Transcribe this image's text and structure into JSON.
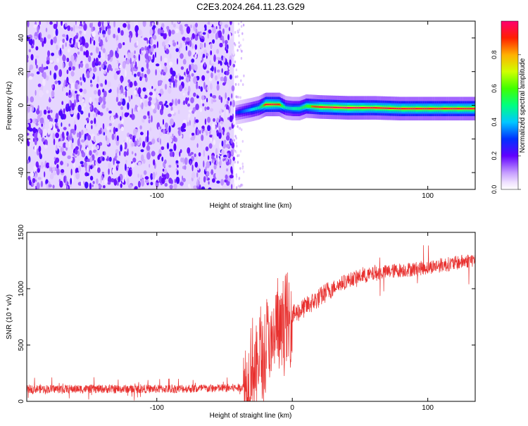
{
  "title": "C2E3.2024.264.11.23.G29",
  "chart_data": [
    {
      "type": "heatmap",
      "xlabel": "Height of straight line (km)",
      "ylabel": "Frequency (Hz)",
      "xlim": [
        -196,
        135
      ],
      "ylim": [
        -50,
        50
      ],
      "xticks": [
        -100,
        0,
        100
      ],
      "xtick_labels": [
        "-100",
        "",
        "100"
      ],
      "yticks": [
        -40,
        -20,
        0,
        20,
        40
      ],
      "colorbar": {
        "label": "Normalized spectral amplitude",
        "range": [
          0,
          1
        ],
        "ticks": [
          0.0,
          0.2,
          0.4,
          0.6,
          0.8
        ],
        "tick_labels": [
          "0.0",
          "0.2",
          "0.4",
          "0.6",
          "0.8"
        ]
      },
      "signal_track": {
        "x": [
          -42,
          -36,
          -30,
          -25,
          -20,
          -15,
          -10,
          -5,
          0,
          5,
          10,
          20,
          40,
          60,
          80,
          100,
          120,
          135
        ],
        "y": [
          -4.5,
          -3.5,
          -2.5,
          -1.5,
          0.5,
          0.5,
          0.5,
          -1.5,
          -2,
          -2,
          -0.5,
          -1,
          -1.5,
          -1.5,
          -2,
          -2,
          -2,
          -2
        ],
        "amplitude": [
          0.35,
          0.45,
          0.55,
          0.6,
          0.9,
          0.9,
          0.85,
          0.6,
          0.6,
          0.65,
          0.75,
          0.9,
          0.95,
          0.9,
          0.9,
          0.9,
          0.9,
          0.9
        ]
      },
      "noise_region_x": [
        -196,
        -43
      ]
    },
    {
      "type": "line",
      "xlabel": "Height of straight line (km)",
      "ylabel": "SNR (10 * v/v)",
      "xlim": [
        -196,
        135
      ],
      "ylim": [
        0,
        1500
      ],
      "xticks": [
        -100,
        0,
        100
      ],
      "yticks": [
        0,
        500,
        1000,
        1500
      ],
      "series": [
        {
          "color": "#e8302e",
          "x": [
            -196,
            -150,
            -100,
            -60,
            -40,
            -33,
            -30,
            -27,
            -24,
            -21,
            -18,
            -15,
            -12,
            -9,
            -6,
            -3,
            0,
            5,
            10,
            15,
            20,
            25,
            30,
            35,
            40,
            50,
            60,
            70,
            80,
            90,
            100,
            110,
            120,
            130,
            135
          ],
          "y": [
            110,
            110,
            110,
            115,
            120,
            140,
            380,
            220,
            470,
            300,
            600,
            380,
            700,
            570,
            740,
            660,
            760,
            800,
            840,
            880,
            920,
            970,
            1010,
            1040,
            1070,
            1110,
            1130,
            1150,
            1165,
            1175,
            1190,
            1210,
            1225,
            1250,
            1260
          ]
        }
      ]
    }
  ]
}
